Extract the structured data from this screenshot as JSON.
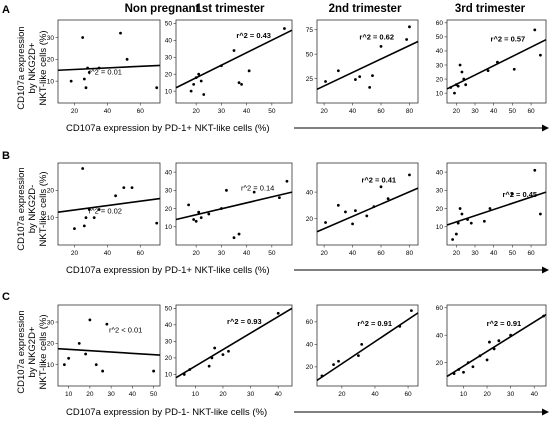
{
  "column_titles": [
    "Non pregnant",
    "1st trimester",
    "2nd trimester",
    "3rd trimester"
  ],
  "rows": [
    {
      "panel": "A",
      "ylabel": [
        "CD107a  expression",
        "by NKG2D+",
        "NKT-like cells (%)"
      ],
      "xlabel": "CD107a expression by PD-1+ NKT-like cells (%)"
    },
    {
      "panel": "B",
      "ylabel": [
        "CD107a  expression",
        "by NKG2D-",
        "NKT-like cells (%)"
      ],
      "xlabel": "CD107a expression by PD-1+ NKT-like cells (%)"
    },
    {
      "panel": "C",
      "ylabel": [
        "CD107a  expression",
        "by NKG2D+",
        "NKT-like cells (%)"
      ],
      "xlabel": "CD107a expression by PD-1- NKT-like cells (%)"
    }
  ],
  "chart_data": [
    {
      "type": "scatter",
      "row": "A",
      "column": "Non pregnant",
      "r2_label": "r^2 = 0.01",
      "r2_bold": false,
      "xlim": [
        10,
        72
      ],
      "ylim": [
        0,
        38
      ],
      "xticks": [
        20,
        40,
        60
      ],
      "yticks": [
        10,
        20,
        30
      ],
      "points": [
        [
          18,
          10
        ],
        [
          25,
          30
        ],
        [
          26,
          11
        ],
        [
          27,
          7
        ],
        [
          28,
          16
        ],
        [
          29,
          14
        ],
        [
          35,
          16
        ],
        [
          48,
          32
        ],
        [
          52,
          20
        ],
        [
          70,
          7
        ]
      ],
      "fit": [
        [
          10,
          15
        ],
        [
          72,
          17.2
        ]
      ]
    },
    {
      "type": "scatter",
      "row": "A",
      "column": "1st trimester",
      "r2_label": "r^2 = 0.43",
      "r2_bold": true,
      "xlim": [
        12,
        58
      ],
      "ylim": [
        3,
        52
      ],
      "xticks": [
        20,
        30,
        40,
        50
      ],
      "yticks": [
        10,
        20,
        30,
        40,
        50
      ],
      "points": [
        [
          18,
          10
        ],
        [
          19,
          14
        ],
        [
          20,
          18
        ],
        [
          21,
          20
        ],
        [
          22,
          16
        ],
        [
          23,
          8
        ],
        [
          30,
          25
        ],
        [
          35,
          34
        ],
        [
          37,
          15
        ],
        [
          38,
          14
        ],
        [
          41,
          22
        ],
        [
          55,
          47
        ]
      ],
      "fit": [
        [
          12,
          12
        ],
        [
          58,
          46
        ]
      ]
    },
    {
      "type": "scatter",
      "row": "A",
      "column": "2nd trimester",
      "r2_label": "r^2 = 0.62",
      "r2_bold": true,
      "xlim": [
        15,
        86
      ],
      "ylim": [
        0,
        85
      ],
      "xticks": [
        20,
        40,
        60,
        80
      ],
      "yticks": [
        25,
        50,
        75
      ],
      "points": [
        [
          21,
          22
        ],
        [
          30,
          33
        ],
        [
          42,
          24
        ],
        [
          45,
          27
        ],
        [
          52,
          16
        ],
        [
          54,
          28
        ],
        [
          60,
          58
        ],
        [
          78,
          65
        ],
        [
          80,
          78
        ]
      ],
      "fit": [
        [
          15,
          14
        ],
        [
          86,
          63
        ]
      ]
    },
    {
      "type": "scatter",
      "row": "A",
      "column": "3rd trimester",
      "r2_label": "r^2 = 0.57",
      "r2_bold": true,
      "xlim": [
        15,
        68
      ],
      "ylim": [
        3,
        62
      ],
      "xticks": [
        20,
        30,
        40,
        50,
        60
      ],
      "yticks": [
        10,
        20,
        30,
        40,
        50,
        60
      ],
      "points": [
        [
          17,
          14
        ],
        [
          19,
          10
        ],
        [
          20,
          16
        ],
        [
          21,
          15
        ],
        [
          22,
          30
        ],
        [
          23,
          25
        ],
        [
          24,
          20
        ],
        [
          25,
          16
        ],
        [
          37,
          26
        ],
        [
          42,
          32
        ],
        [
          51,
          27
        ],
        [
          62,
          55
        ],
        [
          65,
          37
        ]
      ],
      "fit": [
        [
          15,
          13
        ],
        [
          68,
          48
        ]
      ]
    },
    {
      "type": "scatter",
      "row": "B",
      "column": "Non pregnant",
      "r2_label": "r^2 = 0.02",
      "r2_bold": false,
      "xlim": [
        10,
        72
      ],
      "ylim": [
        0,
        30
      ],
      "xticks": [
        20,
        40,
        60
      ],
      "yticks": [
        10,
        20
      ],
      "points": [
        [
          20,
          6
        ],
        [
          25,
          28
        ],
        [
          26,
          7
        ],
        [
          27,
          10
        ],
        [
          29,
          13
        ],
        [
          32,
          10
        ],
        [
          35,
          13
        ],
        [
          45,
          18
        ],
        [
          50,
          21
        ],
        [
          55,
          21
        ],
        [
          70,
          8
        ]
      ],
      "fit": [
        [
          10,
          12
        ],
        [
          72,
          17
        ]
      ]
    },
    {
      "type": "scatter",
      "row": "B",
      "column": "1st trimester",
      "r2_label": "r^2 = 0.14",
      "r2_bold": false,
      "xlim": [
        12,
        58
      ],
      "ylim": [
        0,
        45
      ],
      "xticks": [
        20,
        30,
        40,
        50
      ],
      "yticks": [
        10,
        20,
        30,
        40
      ],
      "points": [
        [
          17,
          22
        ],
        [
          19,
          14
        ],
        [
          20,
          13
        ],
        [
          21,
          18
        ],
        [
          22,
          15
        ],
        [
          25,
          17
        ],
        [
          30,
          20
        ],
        [
          32,
          30
        ],
        [
          35,
          4
        ],
        [
          37,
          6
        ],
        [
          43,
          29
        ],
        [
          53,
          26
        ],
        [
          56,
          35
        ]
      ],
      "fit": [
        [
          12,
          14
        ],
        [
          58,
          29
        ]
      ]
    },
    {
      "type": "scatter",
      "row": "B",
      "column": "2nd trimester",
      "r2_label": "r^2 = 0.41",
      "r2_bold": true,
      "xlim": [
        15,
        86
      ],
      "ylim": [
        0,
        62
      ],
      "xticks": [
        20,
        40,
        60,
        80
      ],
      "yticks": [
        20,
        40
      ],
      "points": [
        [
          21,
          17
        ],
        [
          30,
          30
        ],
        [
          35,
          25
        ],
        [
          40,
          16
        ],
        [
          42,
          26
        ],
        [
          50,
          22
        ],
        [
          55,
          29
        ],
        [
          60,
          44
        ],
        [
          65,
          35
        ],
        [
          80,
          53
        ]
      ],
      "fit": [
        [
          15,
          10
        ],
        [
          86,
          43
        ]
      ]
    },
    {
      "type": "scatter",
      "row": "B",
      "column": "3rd trimester",
      "r2_label": "r^2 = 0.45",
      "r2_bold": true,
      "xlim": [
        15,
        68
      ],
      "ylim": [
        0,
        45
      ],
      "xticks": [
        20,
        30,
        40,
        50,
        60
      ],
      "yticks": [
        10,
        20,
        30,
        40
      ],
      "points": [
        [
          18,
          3
        ],
        [
          20,
          6
        ],
        [
          21,
          12
        ],
        [
          22,
          20
        ],
        [
          23,
          17
        ],
        [
          26,
          14
        ],
        [
          28,
          12
        ],
        [
          35,
          13
        ],
        [
          38,
          20
        ],
        [
          50,
          28
        ],
        [
          62,
          41
        ],
        [
          65,
          17
        ]
      ],
      "fit": [
        [
          15,
          11
        ],
        [
          68,
          29
        ]
      ]
    },
    {
      "type": "scatter",
      "row": "C",
      "column": "Non pregnant",
      "r2_label": "r^2 < 0.01",
      "r2_bold": false,
      "xlim": [
        5,
        53
      ],
      "ylim": [
        0,
        38
      ],
      "xticks": [
        10,
        20,
        30,
        40,
        50
      ],
      "yticks": [
        10,
        20,
        30
      ],
      "points": [
        [
          8,
          10
        ],
        [
          10,
          13
        ],
        [
          15,
          20
        ],
        [
          18,
          15
        ],
        [
          20,
          31
        ],
        [
          23,
          10
        ],
        [
          26,
          7
        ],
        [
          28,
          29
        ],
        [
          50,
          7
        ]
      ],
      "fit": [
        [
          5,
          17.5
        ],
        [
          53,
          14.5
        ]
      ]
    },
    {
      "type": "scatter",
      "row": "C",
      "column": "1st trimester",
      "r2_label": "r^2 = 0.93",
      "r2_bold": true,
      "xlim": [
        3,
        45
      ],
      "ylim": [
        3,
        52
      ],
      "xticks": [
        10,
        20,
        30,
        40
      ],
      "yticks": [
        10,
        20,
        30,
        40,
        50
      ],
      "points": [
        [
          6,
          10
        ],
        [
          8,
          13
        ],
        [
          15,
          15
        ],
        [
          16,
          20
        ],
        [
          17,
          26
        ],
        [
          20,
          22
        ],
        [
          22,
          24
        ],
        [
          40,
          47
        ]
      ],
      "fit": [
        [
          3,
          8
        ],
        [
          45,
          50
        ]
      ]
    },
    {
      "type": "scatter",
      "row": "C",
      "column": "2nd trimester",
      "r2_label": "r^2 = 0.91",
      "r2_bold": true,
      "xlim": [
        5,
        66
      ],
      "ylim": [
        3,
        75
      ],
      "xticks": [
        20,
        40,
        60
      ],
      "yticks": [
        20,
        40,
        60
      ],
      "points": [
        [
          8,
          12
        ],
        [
          15,
          22
        ],
        [
          18,
          25
        ],
        [
          30,
          30
        ],
        [
          32,
          40
        ],
        [
          55,
          56
        ],
        [
          62,
          70
        ]
      ],
      "fit": [
        [
          5,
          8
        ],
        [
          66,
          68
        ]
      ]
    },
    {
      "type": "scatter",
      "row": "C",
      "column": "3rd trimester",
      "r2_label": "r^2 = 0.91",
      "r2_bold": true,
      "xlim": [
        3,
        45
      ],
      "ylim": [
        3,
        62
      ],
      "xticks": [
        10,
        20,
        30,
        40
      ],
      "yticks": [
        20,
        40,
        60
      ],
      "points": [
        [
          6,
          12
        ],
        [
          8,
          15
        ],
        [
          10,
          13
        ],
        [
          12,
          20
        ],
        [
          14,
          17
        ],
        [
          17,
          25
        ],
        [
          20,
          22
        ],
        [
          21,
          35
        ],
        [
          23,
          30
        ],
        [
          25,
          36
        ],
        [
          30,
          40
        ],
        [
          44,
          54
        ]
      ],
      "fit": [
        [
          3,
          10
        ],
        [
          45,
          55
        ]
      ]
    }
  ]
}
